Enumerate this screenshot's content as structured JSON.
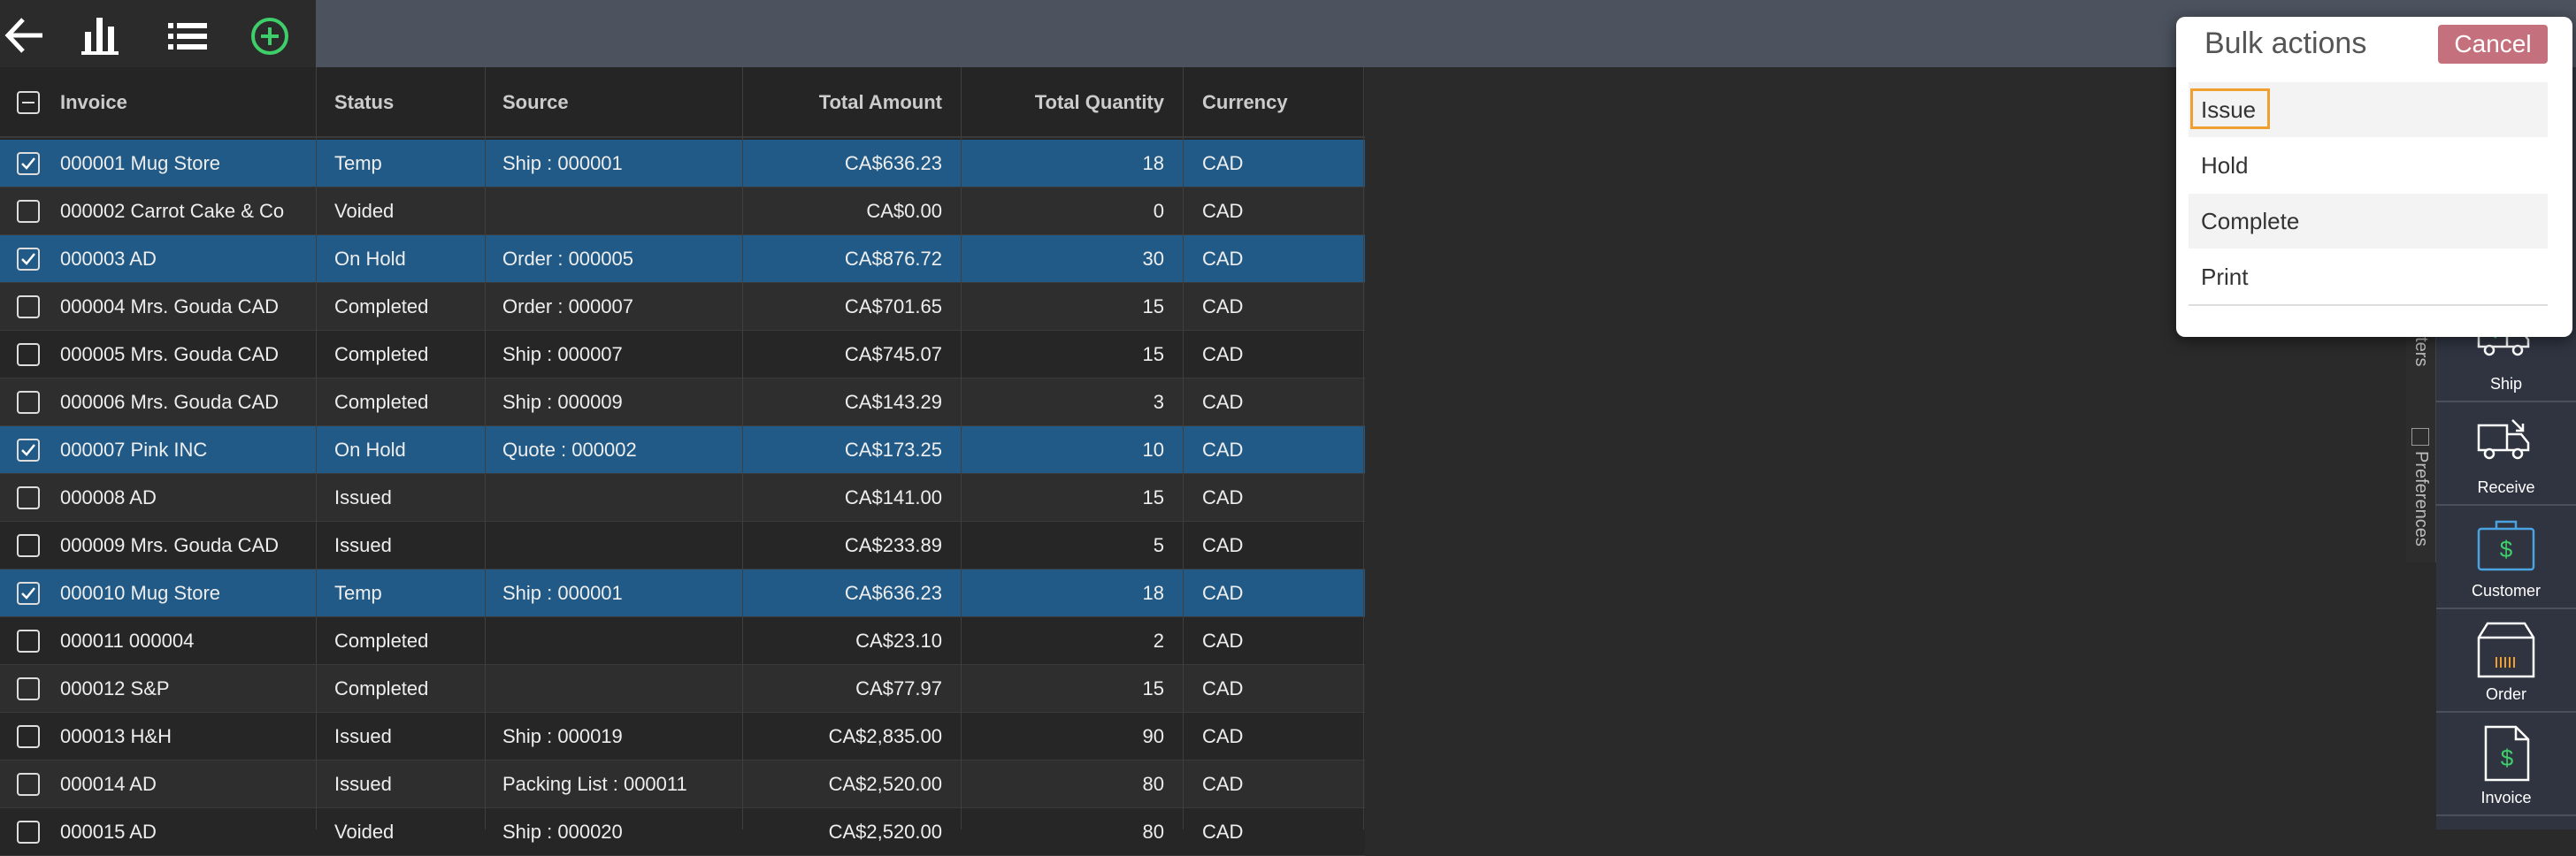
{
  "table": {
    "columns": [
      "Invoice",
      "Status",
      "Source",
      "Total Amount",
      "Total Quantity",
      "Currency"
    ],
    "rows": [
      {
        "selected": true,
        "cells": [
          "000001 Mug Store",
          "Temp",
          "Ship : 000001",
          "CA$636.23",
          18,
          "CAD"
        ]
      },
      {
        "selected": false,
        "cells": [
          "000002 Carrot Cake & Co",
          "Voided",
          "",
          "CA$0.00",
          0,
          "CAD"
        ]
      },
      {
        "selected": true,
        "cells": [
          "000003 AD",
          "On Hold",
          "Order : 000005",
          "CA$876.72",
          30,
          "CAD"
        ]
      },
      {
        "selected": false,
        "cells": [
          "000004 Mrs. Gouda CAD",
          "Completed",
          "Order : 000007",
          "CA$701.65",
          15,
          "CAD"
        ]
      },
      {
        "selected": false,
        "cells": [
          "000005 Mrs. Gouda CAD",
          "Completed",
          "Ship : 000007",
          "CA$745.07",
          15,
          "CAD"
        ]
      },
      {
        "selected": false,
        "cells": [
          "000006 Mrs. Gouda CAD",
          "Completed",
          "Ship : 000009",
          "CA$143.29",
          3,
          "CAD"
        ]
      },
      {
        "selected": true,
        "cells": [
          "000007 Pink INC",
          "On Hold",
          "Quote : 000002",
          "CA$173.25",
          10,
          "CAD"
        ]
      },
      {
        "selected": false,
        "cells": [
          "000008 AD",
          "Issued",
          "",
          "CA$141.00",
          15,
          "CAD"
        ]
      },
      {
        "selected": false,
        "cells": [
          "000009 Mrs. Gouda CAD",
          "Issued",
          "",
          "CA$233.89",
          5,
          "CAD"
        ]
      },
      {
        "selected": true,
        "cells": [
          "000010 Mug Store",
          "Temp",
          "Ship : 000001",
          "CA$636.23",
          18,
          "CAD"
        ]
      },
      {
        "selected": false,
        "cells": [
          "000011 000004",
          "Completed",
          "",
          "CA$23.10",
          2,
          "CAD"
        ]
      },
      {
        "selected": false,
        "cells": [
          "000012 S&P",
          "Completed",
          "",
          "CA$77.97",
          15,
          "CAD"
        ]
      },
      {
        "selected": false,
        "cells": [
          "000013 H&H",
          "Issued",
          "Ship : 000019",
          "CA$2,835.00",
          90,
          "CAD"
        ]
      },
      {
        "selected": false,
        "cells": [
          "000014 AD",
          "Issued",
          "Packing List : 000011",
          "CA$2,520.00",
          80,
          "CAD"
        ]
      },
      {
        "selected": false,
        "cells": [
          "000015 AD",
          "Voided",
          "Ship : 000020",
          "CA$2,520.00",
          80,
          "CAD"
        ]
      }
    ]
  },
  "side_tabs": [
    "Filters",
    "Preferences"
  ],
  "side_nav": [
    "Ship",
    "Receive",
    "Customer",
    "Order",
    "Invoice"
  ],
  "bulk_actions": {
    "title": "Bulk actions",
    "cancel": "Cancel",
    "items": [
      {
        "label": "Issue",
        "focused": true
      },
      {
        "label": "Hold",
        "focused": false
      },
      {
        "label": "Complete",
        "focused": false
      },
      {
        "label": "Print",
        "focused": false
      }
    ]
  }
}
